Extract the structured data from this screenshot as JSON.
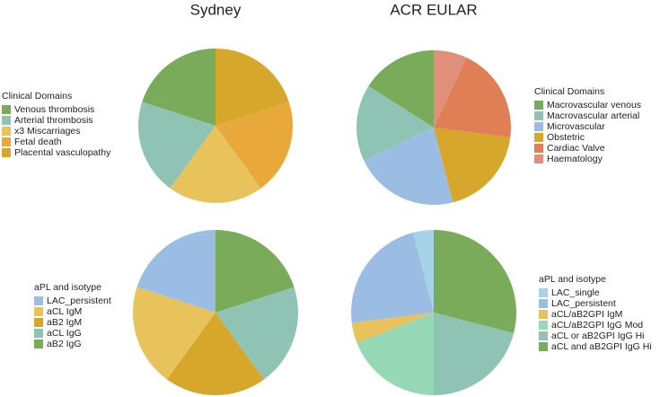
{
  "chart_data": [
    {
      "type": "pie",
      "title": "Sydney",
      "legend_title": "Clinical Domains",
      "categories": [
        "Venous thrombosis",
        "Arterial thrombosis",
        "x3 Miscarriages",
        "Fetal death",
        "Placental vasculopathy"
      ],
      "values": [
        20,
        20,
        20,
        20,
        20
      ],
      "colors": [
        "#7aab5a",
        "#8fc4b4",
        "#e8c25a",
        "#e8a93a",
        "#d6a72a"
      ]
    },
    {
      "type": "pie",
      "title": "ACR EULAR",
      "legend_title": "Clinical Domains",
      "categories": [
        "Macrovascular venous",
        "Macrovascular arterial",
        "Microvascular",
        "Obstetric",
        "Cardiac Valve",
        "Haematology"
      ],
      "values": [
        16,
        16,
        22,
        19,
        20,
        7
      ],
      "colors": [
        "#7aab5a",
        "#8fc4b4",
        "#9bbde4",
        "#d6a72a",
        "#e07f55",
        "#e0907a"
      ]
    },
    {
      "type": "pie",
      "legend_title": "aPL and isotype",
      "categories": [
        "LAC_persistent",
        "aCL IgM",
        "aB2 IgM",
        "aCL IgG",
        "aB2 IgG"
      ],
      "values": [
        20,
        20,
        20,
        20,
        20
      ],
      "colors": [
        "#9bbde4",
        "#e8c25a",
        "#d6a72a",
        "#8fc4b4",
        "#7aab5a"
      ]
    },
    {
      "type": "pie",
      "legend_title": "aPL and isotype",
      "categories": [
        "LAC_single",
        "LAC_persistent",
        "aCL/aB2GPI IgM",
        "aCL/aB2GPI IgG Mod",
        "aCL or aB2GPI IgG Hi",
        "aCL and aB2GPI IgG Hi"
      ],
      "values": [
        4,
        23,
        4,
        19,
        21,
        29
      ],
      "colors": [
        "#a7d3e8",
        "#9bbde4",
        "#e8c25a",
        "#96d8b6",
        "#8fc4b4",
        "#7aab5a"
      ]
    }
  ]
}
